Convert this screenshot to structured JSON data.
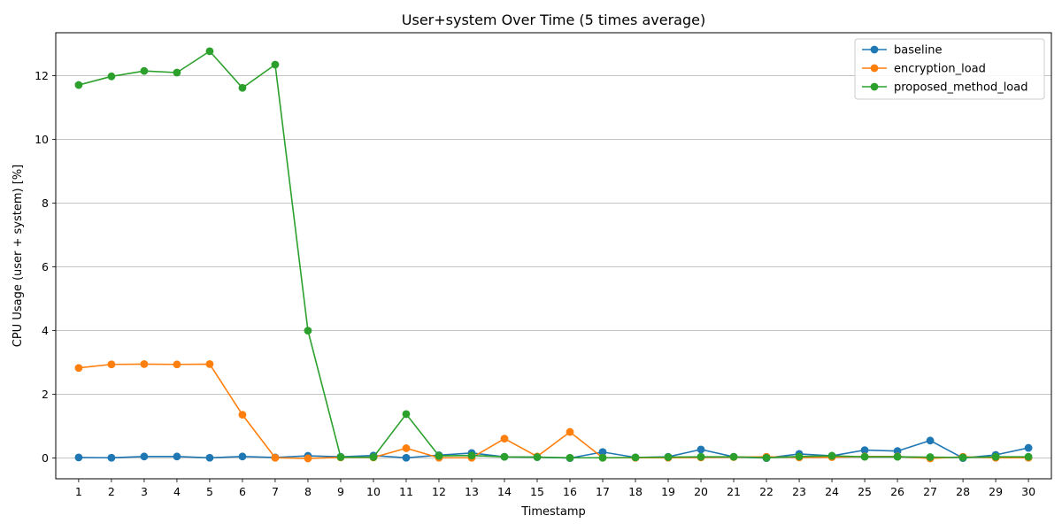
{
  "chart_data": {
    "type": "line",
    "title": "User+system Over Time (5 times average)",
    "xlabel": "Timestamp",
    "ylabel": "CPU Usage (user + system) [%]",
    "x": [
      1,
      2,
      3,
      4,
      5,
      6,
      7,
      8,
      9,
      10,
      11,
      12,
      13,
      14,
      15,
      16,
      17,
      18,
      19,
      20,
      21,
      22,
      23,
      24,
      25,
      26,
      27,
      28,
      29,
      30
    ],
    "xlim": [
      0.3,
      30.7
    ],
    "ylim": [
      -0.65,
      13.35
    ],
    "yticks": [
      0,
      2,
      4,
      6,
      8,
      10,
      12
    ],
    "grid": "horizontal",
    "legend_position": "top-right",
    "series": [
      {
        "name": "baseline",
        "color": "#1f77b4",
        "values": [
          0.02,
          0.01,
          0.05,
          0.05,
          0.01,
          0.05,
          0.02,
          0.07,
          0.04,
          0.08,
          0.01,
          0.09,
          0.16,
          0.04,
          0.03,
          0.0,
          0.19,
          0.02,
          0.04,
          0.27,
          0.04,
          0.0,
          0.13,
          0.07,
          0.25,
          0.22,
          0.55,
          0.0,
          0.1,
          0.32
        ]
      },
      {
        "name": "encryption_load",
        "color": "#ff7f0e",
        "values": [
          2.83,
          2.94,
          2.95,
          2.94,
          2.95,
          1.36,
          0.01,
          -0.01,
          0.02,
          0.02,
          0.31,
          0.01,
          0.01,
          0.61,
          0.05,
          0.82,
          0.01,
          0.01,
          0.01,
          0.02,
          0.03,
          0.04,
          0.02,
          0.03,
          0.05,
          0.05,
          -0.01,
          0.04,
          0.01,
          0.01
        ]
      },
      {
        "name": "proposed_method_load",
        "color": "#2ca02c",
        "values": [
          11.71,
          11.98,
          12.15,
          12.1,
          12.77,
          11.62,
          12.35,
          4.0,
          0.03,
          0.03,
          1.38,
          0.07,
          0.08,
          0.04,
          0.03,
          0.01,
          0.01,
          0.02,
          0.03,
          0.04,
          0.04,
          0.01,
          0.05,
          0.07,
          0.04,
          0.04,
          0.03,
          0.02,
          0.04,
          0.04
        ]
      }
    ]
  }
}
